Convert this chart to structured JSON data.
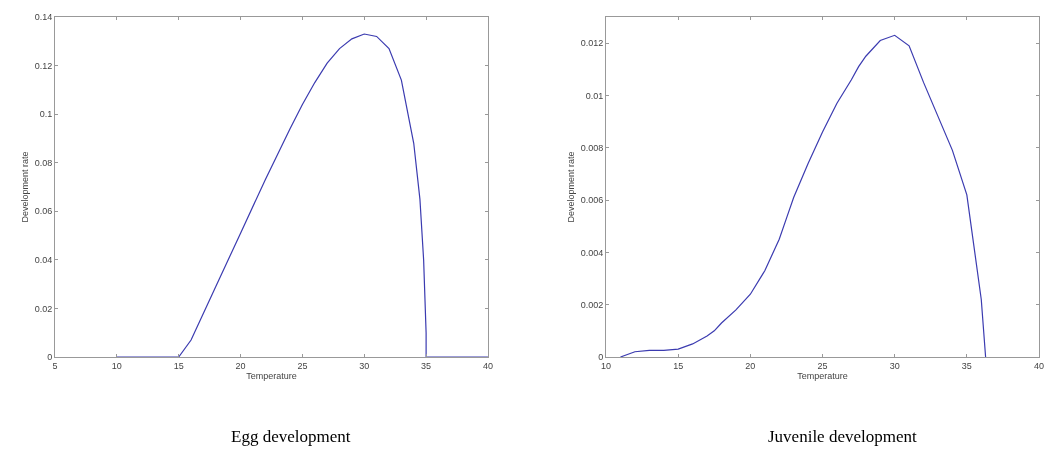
{
  "chart_data": [
    {
      "type": "line",
      "title": "Egg development",
      "xlabel": "Temperature",
      "ylabel": "Development rate",
      "xlim": [
        5,
        40
      ],
      "xticks": [
        5,
        10,
        15,
        20,
        25,
        30,
        35,
        40
      ],
      "ylim": [
        0,
        0.14
      ],
      "yticks": [
        0,
        0.02,
        0.04,
        0.06,
        0.08,
        0.1,
        0.12,
        0.14
      ],
      "grid": false,
      "marker": "none",
      "line_style": "solid",
      "series": [
        {
          "color": "#3b3bb0",
          "x": [
            10,
            15,
            16,
            18,
            20,
            22,
            24,
            25,
            26,
            27,
            28,
            29,
            30,
            31,
            32,
            33,
            34,
            34.5,
            34.8,
            35,
            35,
            40
          ],
          "values": [
            0,
            0,
            0.007,
            0.029,
            0.051,
            0.073,
            0.094,
            0.104,
            0.113,
            0.121,
            0.127,
            0.131,
            0.133,
            0.132,
            0.127,
            0.114,
            0.088,
            0.065,
            0.04,
            0.01,
            0,
            0
          ]
        }
      ]
    },
    {
      "type": "line",
      "title": "Juvenile development",
      "xlabel": "Temperature",
      "ylabel": "Development rate",
      "xlim": [
        10,
        40
      ],
      "xticks": [
        10,
        15,
        20,
        25,
        30,
        35,
        40
      ],
      "ylim": [
        0,
        0.013
      ],
      "yticks": [
        0,
        0.002,
        0.004,
        0.006,
        0.008,
        0.01,
        0.012
      ],
      "grid": false,
      "marker": "none",
      "line_style": "solid",
      "series": [
        {
          "color": "#3b3bb0",
          "x": [
            11,
            12,
            13,
            14,
            15,
            16,
            17,
            17.5,
            18,
            19,
            20,
            21,
            22,
            22.5,
            23,
            24,
            25,
            26,
            27,
            27.5,
            28,
            29,
            30,
            31,
            32,
            33,
            34,
            35,
            36,
            36.3
          ],
          "values": [
            0,
            0.0002,
            0.00025,
            0.00025,
            0.0003,
            0.0005,
            0.0008,
            0.001,
            0.0013,
            0.0018,
            0.0024,
            0.0033,
            0.0045,
            0.0053,
            0.0061,
            0.0074,
            0.0086,
            0.0097,
            0.0106,
            0.0111,
            0.0115,
            0.0121,
            0.0123,
            0.0119,
            0.0105,
            0.0092,
            0.0079,
            0.0062,
            0.0022,
            0
          ]
        }
      ]
    }
  ]
}
